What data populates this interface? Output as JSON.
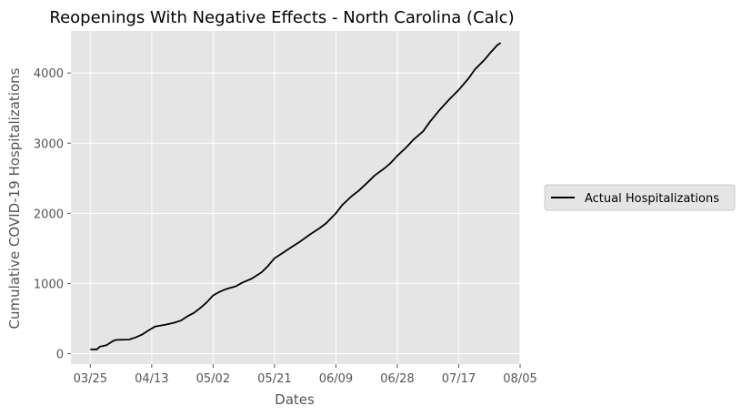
{
  "chart_data": {
    "type": "line",
    "title": "Reopenings With Negative Effects - North Carolina (Calc)",
    "xlabel": "Dates",
    "ylabel": "Cumulative COVID-19 Hospitalizations",
    "x_ticks": [
      "03/25",
      "04/13",
      "05/02",
      "05/21",
      "06/09",
      "06/28",
      "07/17",
      "08/05"
    ],
    "y_ticks": [
      0,
      1000,
      2000,
      3000,
      4000
    ],
    "xlim": [
      "2020-03-19",
      "2020-08-05"
    ],
    "ylim": [
      -150,
      4600
    ],
    "grid": true,
    "legend_position": "right",
    "colors": {
      "plot_background": "#e5e5e5",
      "grid": "#ffffff",
      "line": "#000000"
    },
    "series": [
      {
        "name": "Actual Hospitalizations",
        "color": "#000000",
        "points": [
          [
            "2020-03-25",
            60
          ],
          [
            "2020-03-27",
            60
          ],
          [
            "2020-03-28",
            100
          ],
          [
            "2020-03-30",
            120
          ],
          [
            "2020-04-01",
            180
          ],
          [
            "2020-04-02",
            195
          ],
          [
            "2020-04-06",
            200
          ],
          [
            "2020-04-08",
            230
          ],
          [
            "2020-04-10",
            270
          ],
          [
            "2020-04-12",
            330
          ],
          [
            "2020-04-14",
            385
          ],
          [
            "2020-04-17",
            410
          ],
          [
            "2020-04-20",
            440
          ],
          [
            "2020-04-22",
            470
          ],
          [
            "2020-04-24",
            530
          ],
          [
            "2020-04-26",
            580
          ],
          [
            "2020-04-28",
            650
          ],
          [
            "2020-04-30",
            730
          ],
          [
            "2020-05-02",
            830
          ],
          [
            "2020-05-04",
            880
          ],
          [
            "2020-05-06",
            920
          ],
          [
            "2020-05-09",
            960
          ],
          [
            "2020-05-11",
            1010
          ],
          [
            "2020-05-14",
            1070
          ],
          [
            "2020-05-17",
            1160
          ],
          [
            "2020-05-19",
            1250
          ],
          [
            "2020-05-21",
            1360
          ],
          [
            "2020-05-24",
            1450
          ],
          [
            "2020-05-27",
            1540
          ],
          [
            "2020-05-29",
            1600
          ],
          [
            "2020-06-01",
            1700
          ],
          [
            "2020-06-04",
            1790
          ],
          [
            "2020-06-06",
            1860
          ],
          [
            "2020-06-09",
            2000
          ],
          [
            "2020-06-11",
            2120
          ],
          [
            "2020-06-14",
            2250
          ],
          [
            "2020-06-16",
            2320
          ],
          [
            "2020-06-19",
            2450
          ],
          [
            "2020-06-21",
            2540
          ],
          [
            "2020-06-24",
            2640
          ],
          [
            "2020-06-26",
            2720
          ],
          [
            "2020-06-28",
            2820
          ],
          [
            "2020-07-01",
            2950
          ],
          [
            "2020-07-03",
            3050
          ],
          [
            "2020-07-06",
            3170
          ],
          [
            "2020-07-08",
            3300
          ],
          [
            "2020-07-11",
            3470
          ],
          [
            "2020-07-14",
            3620
          ],
          [
            "2020-07-17",
            3760
          ],
          [
            "2020-07-20",
            3920
          ],
          [
            "2020-07-22",
            4050
          ],
          [
            "2020-07-25",
            4190
          ],
          [
            "2020-07-27",
            4300
          ],
          [
            "2020-07-29",
            4400
          ],
          [
            "2020-07-30",
            4430
          ]
        ]
      }
    ]
  }
}
